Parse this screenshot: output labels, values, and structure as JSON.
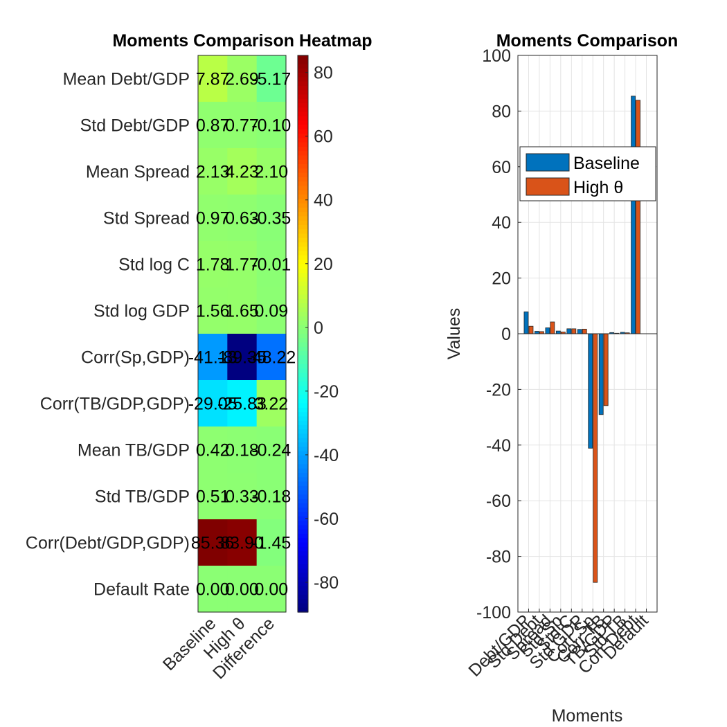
{
  "chart_data": [
    {
      "type": "heatmap",
      "title": "Moments Comparison Heatmap",
      "columns": [
        "Baseline",
        "High θ",
        "Difference"
      ],
      "rows": [
        "Mean Debt/GDP",
        "Std Debt/GDP",
        "Mean Spread",
        "Std Spread",
        "Std log C",
        "Std log GDP",
        "Corr(Sp,GDP)",
        "Corr(TB/GDP,GDP)",
        "Mean TB/GDP",
        "Std TB/GDP",
        "Corr(Debt/GDP,GDP)",
        "Default Rate"
      ],
      "values": [
        [
          7.87,
          2.69,
          -5.17
        ],
        [
          0.87,
          0.77,
          -0.1
        ],
        [
          2.13,
          4.23,
          2.1
        ],
        [
          0.97,
          0.63,
          -0.35
        ],
        [
          1.78,
          1.77,
          -0.01
        ],
        [
          1.56,
          1.65,
          0.09
        ],
        [
          -41.13,
          -89.35,
          -48.22
        ],
        [
          -29.05,
          -25.83,
          3.22
        ],
        [
          0.42,
          0.18,
          -0.24
        ],
        [
          0.51,
          0.33,
          -0.18
        ],
        [
          85.36,
          83.9,
          -1.45
        ],
        [
          0.0,
          0.0,
          0.0
        ]
      ],
      "cell_labels": [
        [
          "7.87",
          "2.69",
          "-5.17"
        ],
        [
          "0.87",
          "0.77",
          "-0.10"
        ],
        [
          "2.13",
          "4.23",
          "2.10"
        ],
        [
          "0.97",
          "0.63",
          "-0.35"
        ],
        [
          "1.78",
          "1.77",
          "-0.01"
        ],
        [
          "1.56",
          "1.65",
          "0.09"
        ],
        [
          "-41.13",
          "-89.35",
          "-48.22"
        ],
        [
          "-29.05",
          "-25.83",
          "3.22"
        ],
        [
          "0.42",
          "0.18",
          "-0.24"
        ],
        [
          "0.51",
          "0.33",
          "-0.18"
        ],
        [
          "85.36",
          "83.90",
          "-1.45"
        ],
        [
          "0.00",
          "0.00",
          "0.00"
        ]
      ],
      "colormap": "jet",
      "clim": [
        -89.35,
        85.36
      ],
      "colorbar_ticks": [
        80,
        60,
        40,
        20,
        0,
        -20,
        -40,
        -60,
        -80
      ]
    },
    {
      "type": "bar",
      "title": "Moments Comparison",
      "xlabel": "Moments",
      "ylabel": "Values",
      "ylim": [
        -100,
        100
      ],
      "yticks": [
        100,
        80,
        60,
        40,
        20,
        0,
        -20,
        -40,
        -60,
        -80,
        -100
      ],
      "categories": [
        "Debt/GDP",
        "Std Debt",
        "Spread",
        "Std Sp",
        "Std C",
        "Std GDP",
        "Corr Sp",
        "Corr TB",
        "TB/GDP",
        "Std TB",
        "Corr Debt",
        "Default"
      ],
      "series": [
        {
          "name": "Baseline",
          "color": "#0072BD",
          "values": [
            7.87,
            0.87,
            2.13,
            0.97,
            1.78,
            1.56,
            -41.13,
            -29.05,
            0.42,
            0.51,
            85.36,
            0.0
          ]
        },
        {
          "name": "High θ",
          "color": "#D95319",
          "values": [
            2.69,
            0.77,
            4.23,
            0.63,
            1.77,
            1.65,
            -89.35,
            -25.83,
            0.18,
            0.33,
            83.9,
            0.0
          ]
        }
      ],
      "grid": true,
      "legend_position": "top-right"
    }
  ]
}
